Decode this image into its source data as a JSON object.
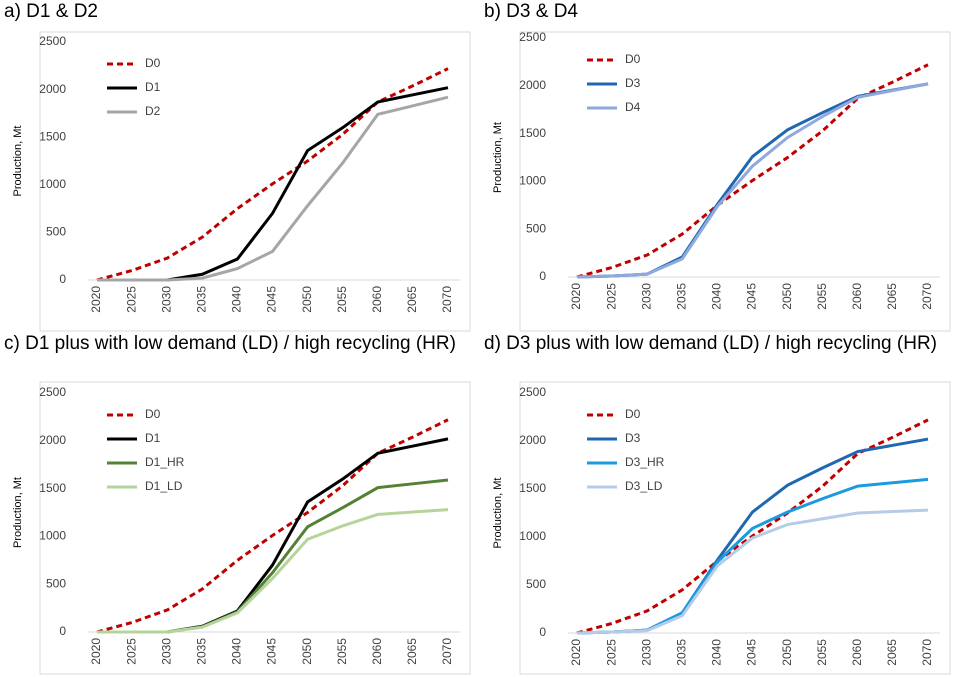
{
  "chart_data": [
    {
      "type": "line",
      "title": "a) D1 & D2",
      "y_label": "Production, Mt",
      "categories": [
        "2020",
        "2025",
        "2030",
        "2035",
        "2040",
        "2045",
        "2050",
        "2055",
        "2060",
        "2065",
        "2070"
      ],
      "ylim": [
        0,
        2500
      ],
      "yticks": [
        0,
        500,
        1000,
        1500,
        2000,
        2500
      ],
      "grid": false,
      "legend": "top-left",
      "series": [
        {
          "name": "D0",
          "color": "#c00000",
          "dash": true,
          "values": [
            0,
            100,
            230,
            450,
            750,
            1010,
            1250,
            1530,
            1870,
            2040,
            2220
          ]
        },
        {
          "name": "D1",
          "color": "#000000",
          "dash": false,
          "values": [
            0,
            0,
            0,
            60,
            220,
            700,
            1360,
            1600,
            1870,
            1945,
            2020
          ]
        },
        {
          "name": "D2",
          "color": "#a6a6a6",
          "dash": false,
          "values": [
            0,
            0,
            0,
            20,
            120,
            300,
            780,
            1230,
            1740,
            1830,
            1920
          ]
        }
      ]
    },
    {
      "type": "line",
      "title": "b) D3 & D4",
      "y_label": "Production, Mt",
      "categories": [
        "2020",
        "2025",
        "2030",
        "2035",
        "2040",
        "2045",
        "2050",
        "2055",
        "2060",
        "2065",
        "2070"
      ],
      "ylim": [
        0,
        2500
      ],
      "yticks": [
        0,
        500,
        1000,
        1500,
        2000,
        2500
      ],
      "grid": false,
      "legend": "top-left",
      "series": [
        {
          "name": "D0",
          "color": "#c00000",
          "dash": true,
          "values": [
            0,
            100,
            230,
            450,
            750,
            1010,
            1250,
            1530,
            1870,
            2040,
            2220
          ]
        },
        {
          "name": "D3",
          "color": "#1f67b1",
          "dash": false,
          "values": [
            0,
            10,
            30,
            210,
            760,
            1260,
            1540,
            1720,
            1890,
            1955,
            2020
          ]
        },
        {
          "name": "D4",
          "color": "#8fa9dc",
          "dash": false,
          "values": [
            0,
            10,
            30,
            190,
            740,
            1160,
            1460,
            1680,
            1880,
            1950,
            2020
          ]
        }
      ]
    },
    {
      "type": "line",
      "title": "c) D1 plus with low demand (LD) / high recycling (HR)",
      "y_label": "Production, Mt",
      "categories": [
        "2020",
        "2025",
        "2030",
        "2035",
        "2040",
        "2045",
        "2050",
        "2055",
        "2060",
        "2065",
        "2070"
      ],
      "ylim": [
        0,
        2500
      ],
      "yticks": [
        0,
        500,
        1000,
        1500,
        2000,
        2500
      ],
      "grid": false,
      "legend": "top-left",
      "series": [
        {
          "name": "D0",
          "color": "#c00000",
          "dash": true,
          "values": [
            0,
            100,
            230,
            450,
            750,
            1010,
            1250,
            1530,
            1870,
            2040,
            2220
          ]
        },
        {
          "name": "D1",
          "color": "#000000",
          "dash": false,
          "values": [
            0,
            0,
            0,
            60,
            220,
            700,
            1360,
            1600,
            1870,
            1945,
            2020
          ]
        },
        {
          "name": "D1_HR",
          "color": "#548235",
          "dash": false,
          "values": [
            0,
            0,
            0,
            55,
            210,
            620,
            1100,
            1300,
            1510,
            1550,
            1590
          ]
        },
        {
          "name": "D1_LD",
          "color": "#b5d49c",
          "dash": false,
          "values": [
            0,
            0,
            0,
            50,
            200,
            560,
            970,
            1110,
            1230,
            1255,
            1280
          ]
        }
      ]
    },
    {
      "type": "line",
      "title": "d) D3 plus with low demand (LD) / high recycling (HR)",
      "y_label": "Production, Mt",
      "categories": [
        "2020",
        "2025",
        "2030",
        "2035",
        "2040",
        "2045",
        "2050",
        "2055",
        "2060",
        "2065",
        "2070"
      ],
      "ylim": [
        0,
        2500
      ],
      "yticks": [
        0,
        500,
        1000,
        1500,
        2000,
        2500
      ],
      "grid": false,
      "legend": "top-left",
      "series": [
        {
          "name": "D0",
          "color": "#c00000",
          "dash": true,
          "values": [
            0,
            100,
            230,
            450,
            750,
            1010,
            1250,
            1530,
            1870,
            2040,
            2220
          ]
        },
        {
          "name": "D3",
          "color": "#1f67b1",
          "dash": false,
          "values": [
            0,
            10,
            30,
            210,
            760,
            1260,
            1540,
            1720,
            1890,
            1955,
            2020
          ]
        },
        {
          "name": "D3_HR",
          "color": "#1a9be0",
          "dash": false,
          "values": [
            0,
            10,
            30,
            210,
            740,
            1090,
            1260,
            1400,
            1530,
            1565,
            1600
          ]
        },
        {
          "name": "D3_LD",
          "color": "#b4cce8",
          "dash": false,
          "values": [
            0,
            10,
            25,
            180,
            700,
            990,
            1130,
            1190,
            1250,
            1265,
            1280
          ]
        }
      ]
    }
  ]
}
